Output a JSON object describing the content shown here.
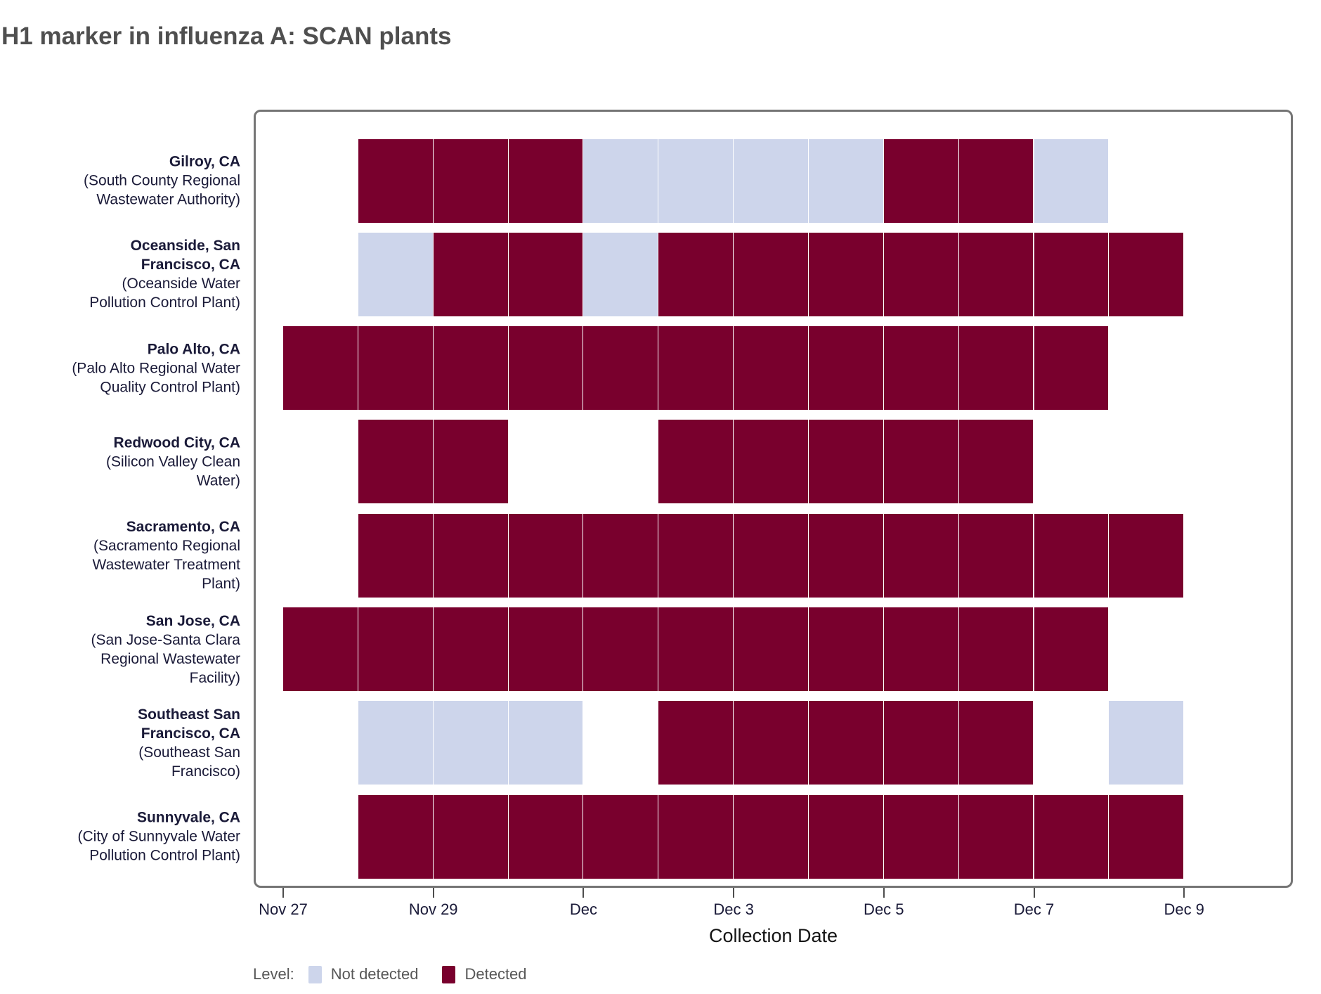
{
  "title": "H1 marker in influenza A: SCAN plants",
  "chart_data": {
    "type": "heatmap",
    "title": "H1 marker in influenza A: SCAN plants",
    "xlabel": "Collection Date",
    "x_range": [
      "Nov 27",
      "Dec 9"
    ],
    "x_dates": [
      "Nov 27",
      "Nov 28",
      "Nov 29",
      "Nov 30",
      "Dec 1",
      "Dec 2",
      "Dec 3",
      "Dec 4",
      "Dec 5",
      "Dec 6",
      "Dec 7",
      "Dec 8",
      "Dec 9"
    ],
    "x_ticks": [
      {
        "label": "Nov 27",
        "day": 0
      },
      {
        "label": "Nov 29",
        "day": 2
      },
      {
        "label": "Dec",
        "day": 4
      },
      {
        "label": "Dec 3",
        "day": 6
      },
      {
        "label": "Dec 5",
        "day": 8
      },
      {
        "label": "Dec 7",
        "day": 10
      },
      {
        "label": "Dec 9",
        "day": 12
      }
    ],
    "legend": {
      "title": "Level:",
      "items": [
        {
          "label": "Not detected",
          "status": "not_detected",
          "color": "#CDD5EB"
        },
        {
          "label": "Detected",
          "status": "detected",
          "color": "#79002D"
        }
      ]
    },
    "rows": [
      {
        "label_bold": "Gilroy, CA",
        "label_sub": "(South County Regional\nWastewater Authority)",
        "tiles": [
          {
            "date": "Nov 28",
            "day": 1,
            "status": "detected"
          },
          {
            "date": "Nov 29",
            "day": 2,
            "status": "detected"
          },
          {
            "date": "Nov 30",
            "day": 3,
            "status": "detected"
          },
          {
            "date": "Dec 1",
            "day": 4,
            "status": "not_detected"
          },
          {
            "date": "Dec 2",
            "day": 5,
            "status": "not_detected"
          },
          {
            "date": "Dec 3",
            "day": 6,
            "status": "not_detected"
          },
          {
            "date": "Dec 4",
            "day": 7,
            "status": "not_detected"
          },
          {
            "date": "Dec 5",
            "day": 8,
            "status": "detected"
          },
          {
            "date": "Dec 6",
            "day": 9,
            "status": "detected"
          },
          {
            "date": "Dec 7",
            "day": 10,
            "status": "not_detected"
          }
        ]
      },
      {
        "label_bold": "Oceanside, San\nFrancisco, CA",
        "label_sub": "(Oceanside Water\nPollution Control Plant)",
        "tiles": [
          {
            "date": "Nov 28",
            "day": 1,
            "status": "not_detected"
          },
          {
            "date": "Nov 29",
            "day": 2,
            "status": "detected"
          },
          {
            "date": "Nov 30",
            "day": 3,
            "status": "detected"
          },
          {
            "date": "Dec 1",
            "day": 4,
            "status": "not_detected"
          },
          {
            "date": "Dec 2",
            "day": 5,
            "status": "detected"
          },
          {
            "date": "Dec 3",
            "day": 6,
            "status": "detected"
          },
          {
            "date": "Dec 4",
            "day": 7,
            "status": "detected"
          },
          {
            "date": "Dec 5",
            "day": 8,
            "status": "detected"
          },
          {
            "date": "Dec 6",
            "day": 9,
            "status": "detected"
          },
          {
            "date": "Dec 7",
            "day": 10,
            "status": "detected"
          },
          {
            "date": "Dec 8",
            "day": 11,
            "status": "detected"
          }
        ]
      },
      {
        "label_bold": "Palo Alto, CA",
        "label_sub": "(Palo Alto Regional Water\nQuality Control Plant)",
        "tiles": [
          {
            "date": "Nov 27",
            "day": 0,
            "status": "detected"
          },
          {
            "date": "Nov 28",
            "day": 1,
            "status": "detected"
          },
          {
            "date": "Nov 29",
            "day": 2,
            "status": "detected"
          },
          {
            "date": "Nov 30",
            "day": 3,
            "status": "detected"
          },
          {
            "date": "Dec 1",
            "day": 4,
            "status": "detected"
          },
          {
            "date": "Dec 2",
            "day": 5,
            "status": "detected"
          },
          {
            "date": "Dec 3",
            "day": 6,
            "status": "detected"
          },
          {
            "date": "Dec 4",
            "day": 7,
            "status": "detected"
          },
          {
            "date": "Dec 5",
            "day": 8,
            "status": "detected"
          },
          {
            "date": "Dec 6",
            "day": 9,
            "status": "detected"
          },
          {
            "date": "Dec 7",
            "day": 10,
            "status": "detected"
          }
        ]
      },
      {
        "label_bold": "Redwood City, CA",
        "label_sub": "(Silicon Valley Clean\nWater)",
        "tiles": [
          {
            "date": "Nov 28",
            "day": 1,
            "status": "detected"
          },
          {
            "date": "Nov 29",
            "day": 2,
            "status": "detected"
          },
          {
            "date": "Dec 2",
            "day": 5,
            "status": "detected"
          },
          {
            "date": "Dec 3",
            "day": 6,
            "status": "detected"
          },
          {
            "date": "Dec 4",
            "day": 7,
            "status": "detected"
          },
          {
            "date": "Dec 5",
            "day": 8,
            "status": "detected"
          },
          {
            "date": "Dec 6",
            "day": 9,
            "status": "detected"
          }
        ]
      },
      {
        "label_bold": "Sacramento, CA",
        "label_sub": "(Sacramento Regional\nWastewater Treatment\nPlant)",
        "tiles": [
          {
            "date": "Nov 28",
            "day": 1,
            "status": "detected"
          },
          {
            "date": "Nov 29",
            "day": 2,
            "status": "detected"
          },
          {
            "date": "Nov 30",
            "day": 3,
            "status": "detected"
          },
          {
            "date": "Dec 1",
            "day": 4,
            "status": "detected"
          },
          {
            "date": "Dec 2",
            "day": 5,
            "status": "detected"
          },
          {
            "date": "Dec 3",
            "day": 6,
            "status": "detected"
          },
          {
            "date": "Dec 4",
            "day": 7,
            "status": "detected"
          },
          {
            "date": "Dec 5",
            "day": 8,
            "status": "detected"
          },
          {
            "date": "Dec 6",
            "day": 9,
            "status": "detected"
          },
          {
            "date": "Dec 7",
            "day": 10,
            "status": "detected"
          },
          {
            "date": "Dec 8",
            "day": 11,
            "status": "detected"
          }
        ]
      },
      {
        "label_bold": "San Jose, CA",
        "label_sub": "(San Jose-Santa Clara\nRegional Wastewater\nFacility)",
        "tiles": [
          {
            "date": "Nov 27",
            "day": 0,
            "status": "detected"
          },
          {
            "date": "Nov 28",
            "day": 1,
            "status": "detected"
          },
          {
            "date": "Nov 29",
            "day": 2,
            "status": "detected"
          },
          {
            "date": "Nov 30",
            "day": 3,
            "status": "detected"
          },
          {
            "date": "Dec 1",
            "day": 4,
            "status": "detected"
          },
          {
            "date": "Dec 2",
            "day": 5,
            "status": "detected"
          },
          {
            "date": "Dec 3",
            "day": 6,
            "status": "detected"
          },
          {
            "date": "Dec 4",
            "day": 7,
            "status": "detected"
          },
          {
            "date": "Dec 5",
            "day": 8,
            "status": "detected"
          },
          {
            "date": "Dec 6",
            "day": 9,
            "status": "detected"
          },
          {
            "date": "Dec 7",
            "day": 10,
            "status": "detected"
          }
        ]
      },
      {
        "label_bold": "Southeast San\nFrancisco, CA",
        "label_sub": "(Southeast San\nFrancisco)",
        "tiles": [
          {
            "date": "Nov 28",
            "day": 1,
            "status": "not_detected"
          },
          {
            "date": "Nov 29",
            "day": 2,
            "status": "not_detected"
          },
          {
            "date": "Nov 30",
            "day": 3,
            "status": "not_detected"
          },
          {
            "date": "Dec 2",
            "day": 5,
            "status": "detected"
          },
          {
            "date": "Dec 3",
            "day": 6,
            "status": "detected"
          },
          {
            "date": "Dec 4",
            "day": 7,
            "status": "detected"
          },
          {
            "date": "Dec 5",
            "day": 8,
            "status": "detected"
          },
          {
            "date": "Dec 6",
            "day": 9,
            "status": "detected"
          },
          {
            "date": "Dec 8",
            "day": 11,
            "status": "not_detected"
          }
        ]
      },
      {
        "label_bold": "Sunnyvale, CA",
        "label_sub": "(City of Sunnyvale Water\nPollution Control Plant)",
        "tiles": [
          {
            "date": "Nov 28",
            "day": 1,
            "status": "detected"
          },
          {
            "date": "Nov 29",
            "day": 2,
            "status": "detected"
          },
          {
            "date": "Nov 30",
            "day": 3,
            "status": "detected"
          },
          {
            "date": "Dec 1",
            "day": 4,
            "status": "detected"
          },
          {
            "date": "Dec 2",
            "day": 5,
            "status": "detected"
          },
          {
            "date": "Dec 3",
            "day": 6,
            "status": "detected"
          },
          {
            "date": "Dec 4",
            "day": 7,
            "status": "detected"
          },
          {
            "date": "Dec 5",
            "day": 8,
            "status": "detected"
          },
          {
            "date": "Dec 6",
            "day": 9,
            "status": "detected"
          },
          {
            "date": "Dec 7",
            "day": 10,
            "status": "detected"
          },
          {
            "date": "Dec 8",
            "day": 11,
            "status": "detected"
          }
        ]
      }
    ]
  }
}
